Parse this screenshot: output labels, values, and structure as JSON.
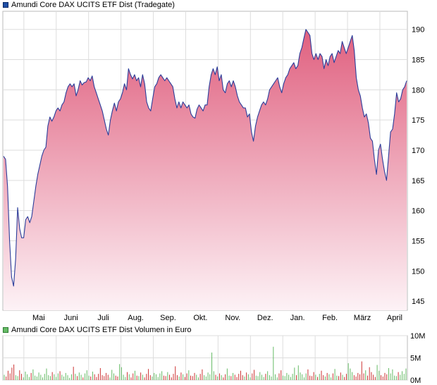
{
  "legend": {
    "price_label": "Amundi Core DAX UCITS ETF Dist (Tradegate)",
    "volume_label": "Amundi Core DAX UCITS ETF Dist Volumen in Euro"
  },
  "colors": {
    "price_line": "#2b3d9a",
    "area_top": "#e0607f",
    "area_bottom": "#fdf2f6",
    "volume_up": "#66bb66",
    "volume_down": "#cc3333",
    "grid": "#dddddd"
  },
  "chart_data": [
    {
      "type": "area",
      "title": "",
      "xlabel": "",
      "ylabel": "",
      "ylim": [
        143.5,
        193
      ],
      "y_ticks": [
        145,
        150,
        155,
        160,
        165,
        170,
        175,
        180,
        185,
        190
      ],
      "x_tick_labels": [
        "Mai",
        "Juni",
        "Juli",
        "Aug.",
        "Sep.",
        "Okt.",
        "Nov.",
        "Dez.",
        "Jan.",
        "Feb.",
        "März",
        "April"
      ],
      "grid": true,
      "legend_position": "top-left",
      "series": [
        {
          "name": "Amundi Core DAX UCITS ETF Dist (Tradegate)",
          "values": [
            169,
            168.5,
            164,
            155,
            149,
            147.5,
            152,
            160.5,
            157,
            155.5,
            155.5,
            158.5,
            159,
            158,
            159,
            161.5,
            164,
            166,
            167.5,
            169,
            170,
            170.5,
            174,
            175.5,
            174.8,
            175.5,
            176.5,
            177,
            176.5,
            177.5,
            178,
            179.5,
            180.5,
            181,
            180.5,
            181,
            179,
            180,
            181.5,
            180.8,
            181.2,
            181.3,
            182,
            181.5,
            182.3,
            180.5,
            179.5,
            178.5,
            177.5,
            176.5,
            175,
            173.5,
            172.5,
            175,
            176.5,
            177.8,
            176.5,
            178,
            178.5,
            179.5,
            181,
            180,
            183.5,
            182.5,
            181.8,
            182.5,
            181.5,
            182,
            180.5,
            182.5,
            181,
            178,
            177,
            176.5,
            178.5,
            180.5,
            181,
            182,
            182.5,
            182,
            181.5,
            182,
            181.5,
            181,
            180.5,
            178.5,
            177,
            178,
            177,
            178,
            177.5,
            177,
            177.5,
            176,
            175.5,
            175.3,
            176.8,
            177.5,
            177,
            176.5,
            177.5,
            177.5,
            180.5,
            182.5,
            183.5,
            182.5,
            183.8,
            181.5,
            182.5,
            180,
            179.5,
            181,
            181.5,
            180.5,
            181.5,
            180.5,
            179,
            178,
            177.5,
            177,
            177,
            175.5,
            176,
            173,
            171.5,
            174,
            175.5,
            176.5,
            177.5,
            178,
            177.5,
            178.5,
            180,
            180.5,
            181,
            181.5,
            182,
            180.5,
            179.5,
            181,
            182,
            182.5,
            183.5,
            184,
            184.5,
            183.5,
            184,
            186,
            187,
            188.5,
            190,
            189.5,
            189,
            186,
            185,
            186,
            185,
            186,
            185.5,
            183.5,
            185,
            184,
            185.5,
            186,
            184.5,
            185.5,
            186.5,
            186,
            188,
            187,
            186,
            187,
            188,
            189,
            186.5,
            182,
            180,
            179,
            177,
            175.5,
            176,
            174.5,
            172,
            171.5,
            168.5,
            166,
            170,
            171,
            168.5,
            166.5,
            165,
            169,
            173,
            173.5,
            176,
            179.5,
            178,
            178.5,
            180,
            180.5,
            181.5
          ]
        }
      ]
    },
    {
      "type": "bar",
      "title": "",
      "ylim": [
        0,
        10
      ],
      "y_ticks": [
        0,
        5,
        10
      ],
      "y_tick_labels": [
        "0M",
        "5M",
        "10M"
      ],
      "grid": true,
      "series": [
        {
          "name": "Amundi Core DAX UCITS ETF Dist Volumen in Euro",
          "values": [
            1.2,
            0.8,
            2.1,
            1.5,
            2.8,
            3.5,
            1.1,
            0.9,
            2.2,
            1.4,
            0.6,
            1.9,
            1.3,
            0.7,
            1.6,
            2.4,
            1.0,
            0.8,
            1.7,
            1.2,
            0.6,
            1.4,
            2.6,
            1.1,
            0.9,
            1.8,
            1.3,
            0.7,
            1.5,
            2.0,
            1.2,
            0.8,
            1.6,
            1.1,
            0.5,
            1.3,
            3.0,
            1.4,
            0.9,
            1.7,
            1.2,
            0.6,
            1.5,
            2.2,
            1.0,
            0.8,
            1.9,
            1.3,
            0.7,
            1.4,
            2.7,
            1.1,
            0.9,
            1.6,
            1.2,
            0.6,
            2.3,
            1.5,
            1.0,
            0.8,
            3.6,
            2.9,
            1.2,
            0.7,
            1.8,
            1.3,
            0.6,
            1.5,
            2.1,
            1.0,
            0.9,
            1.7,
            1.2,
            0.6,
            1.4,
            2.5,
            1.1,
            0.8,
            1.6,
            1.3,
            0.7,
            1.5,
            2.0,
            1.0,
            0.9,
            1.8,
            1.2,
            0.6,
            1.4,
            3.1,
            1.1,
            0.8,
            1.7,
            1.3,
            0.7,
            1.5,
            2.2,
            1.0,
            0.9,
            1.6,
            1.2,
            0.6,
            1.4,
            2.4,
            1.1,
            0.8,
            1.7,
            1.3,
            6.2,
            2.0,
            1.2,
            0.8,
            1.5,
            1.1,
            0.6,
            1.3,
            2.6,
            1.0,
            0.9,
            1.6,
            1.2,
            0.7,
            1.4,
            2.1,
            1.1,
            0.8,
            1.7,
            1.3,
            0.6,
            1.5,
            2.3,
            1.0,
            0.9,
            1.8,
            1.2,
            0.7,
            1.4,
            2.0,
            1.1,
            0.8,
            7.5,
            1.3,
            0.6,
            1.5,
            2.2,
            1.0,
            0.9,
            1.6,
            1.2,
            0.7,
            1.4,
            2.8,
            1.1,
            3.3,
            1.7,
            1.3,
            0.6,
            1.5,
            2.4,
            1.0,
            0.9,
            1.8,
            1.2,
            0.7,
            1.4,
            2.1,
            1.1,
            0.8,
            1.6,
            1.3,
            0.6,
            1.5,
            2.5,
            1.0,
            0.9,
            1.7,
            1.2,
            0.7,
            1.4,
            3.8,
            2.6,
            1.8,
            1.1,
            0.8,
            1.6,
            1.3,
            4.2,
            1.5,
            2.2,
            1.0,
            2.9,
            1.8,
            1.2,
            0.7,
            3.4,
            2.1,
            1.1,
            0.8,
            1.6,
            1.3,
            2.7,
            1.5,
            2.4,
            1.0,
            0.9,
            1.8,
            1.2,
            2.0,
            1.4,
            2.6
          ]
        }
      ]
    }
  ]
}
